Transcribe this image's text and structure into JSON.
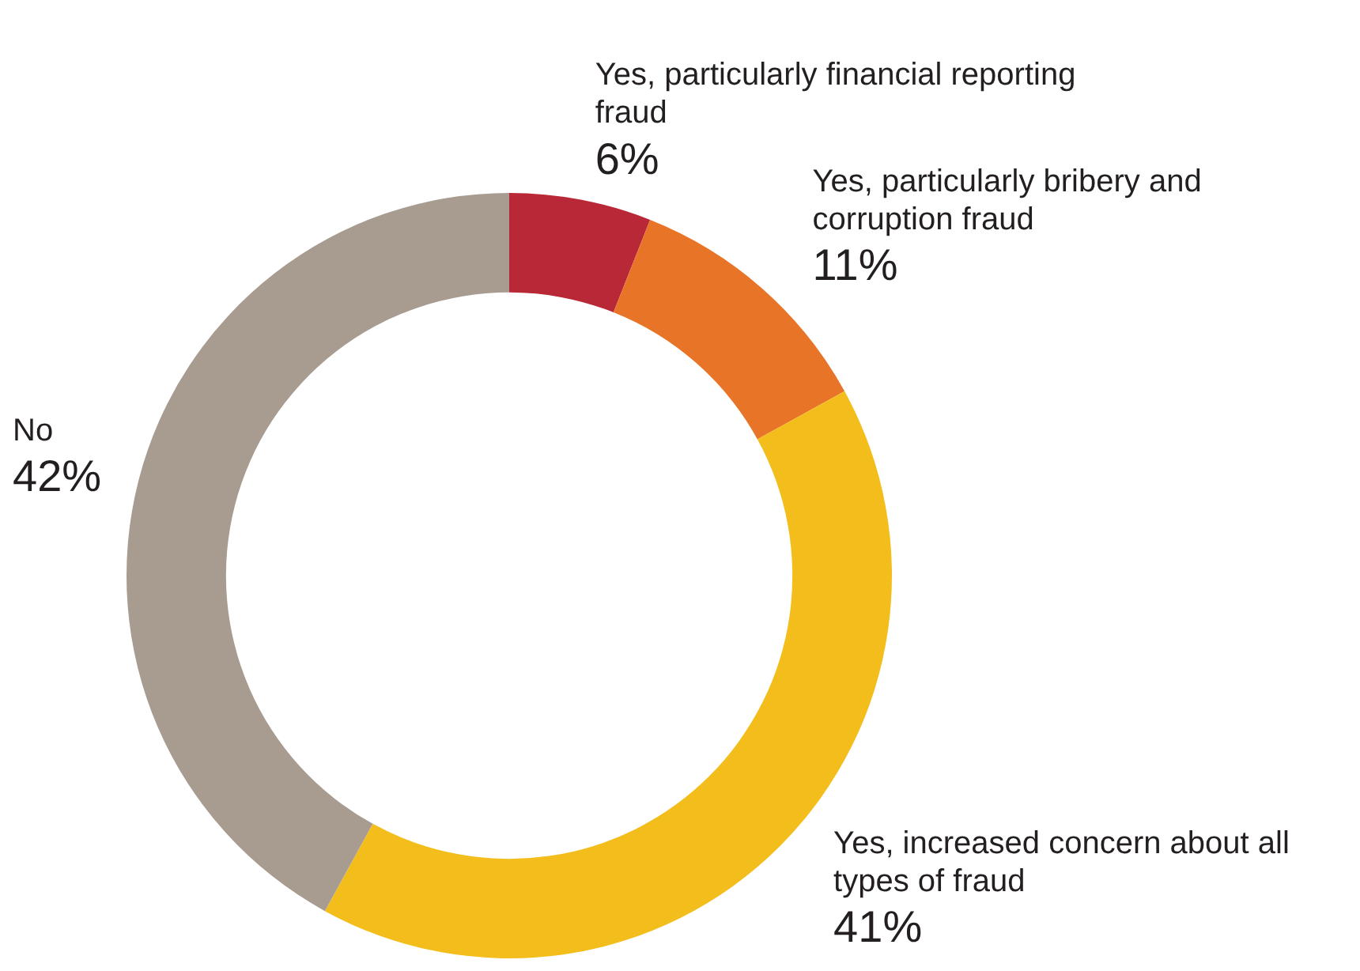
{
  "chart_data": {
    "type": "donut",
    "categories": [
      "Yes, particularly financial reporting fraud",
      "Yes, particularly bribery and corruption fraud",
      "Yes, increased concern about all types of fraud",
      "No"
    ],
    "values": [
      6,
      11,
      41,
      42
    ],
    "colors": [
      "#b92837",
      "#e87427",
      "#f3bd1b",
      "#a89c91"
    ],
    "value_labels": [
      "6%",
      "11%",
      "41%",
      "42%"
    ],
    "legend": false
  }
}
